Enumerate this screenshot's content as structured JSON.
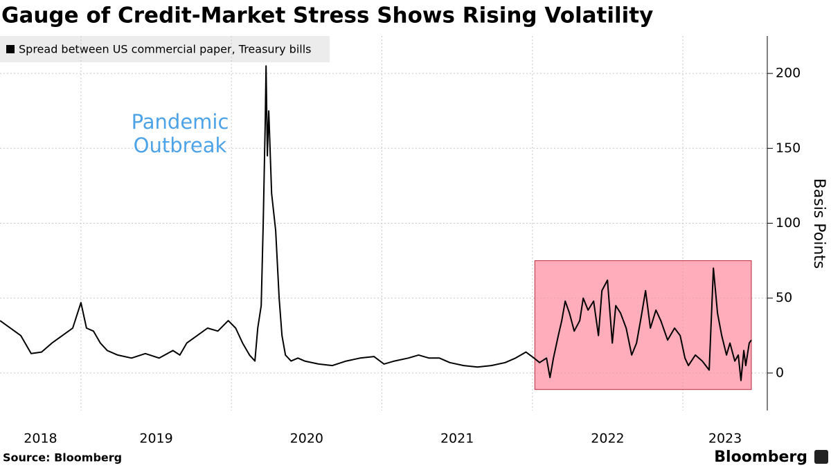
{
  "chart_data": {
    "type": "line",
    "title": "Gauge of Credit-Market Stress Shows Rising Volatility",
    "y_label": "Basis Points",
    "source": "Source: Bloomberg",
    "brand": "Bloomberg",
    "annotation": [
      "Pandemic",
      "Outbreak"
    ],
    "annotation_color": "#4da3e8",
    "x": [
      2018.462,
      2018.6,
      2018.669,
      2018.738,
      2018.807,
      2018.876,
      2018.945,
      2019.0,
      2019.037,
      2019.083,
      2019.129,
      2019.175,
      2019.244,
      2019.336,
      2019.428,
      2019.52,
      2019.611,
      2019.657,
      2019.703,
      2019.772,
      2019.841,
      2019.91,
      2019.979,
      2020.028,
      2020.074,
      2020.12,
      2020.156,
      2020.175,
      2020.198,
      2020.211,
      2020.225,
      2020.23,
      2020.239,
      2020.248,
      2020.267,
      2020.294,
      2020.317,
      2020.336,
      2020.359,
      2020.396,
      2020.442,
      2020.487,
      2020.579,
      2020.671,
      2020.763,
      2020.855,
      2020.947,
      2021.014,
      2021.083,
      2021.175,
      2021.244,
      2021.313,
      2021.382,
      2021.451,
      2021.543,
      2021.635,
      2021.727,
      2021.819,
      2021.888,
      2021.957,
      2022.011,
      2022.048,
      2022.094,
      2022.117,
      2022.14,
      2022.172,
      2022.195,
      2022.218,
      2022.246,
      2022.278,
      2022.315,
      2022.338,
      2022.37,
      2022.407,
      2022.439,
      2022.462,
      2022.499,
      2022.531,
      2022.554,
      2022.586,
      2022.623,
      2022.66,
      2022.692,
      2022.724,
      2022.752,
      2022.784,
      2022.821,
      2022.853,
      2022.899,
      2022.945,
      2022.982,
      2023.014,
      2023.037,
      2023.083,
      2023.129,
      2023.175,
      2023.203,
      2023.23,
      2023.258,
      2023.29,
      2023.313,
      2023.345,
      2023.368,
      2023.386,
      2023.405,
      2023.418,
      2023.441,
      2023.455
    ],
    "series": [
      {
        "name": "Spread between US commercial paper, Treasury bills",
        "color": "#000000",
        "values": [
          35,
          25,
          13,
          14,
          20,
          25,
          30,
          47,
          30,
          28,
          20,
          15,
          12,
          10,
          13,
          10,
          15,
          12,
          20,
          25,
          30,
          28,
          35,
          30,
          20,
          12,
          8,
          30,
          45,
          100,
          170,
          205,
          145,
          175,
          120,
          95,
          50,
          25,
          12,
          8,
          10,
          8,
          6,
          5,
          8,
          10,
          11,
          6,
          8,
          10,
          12,
          10,
          10,
          7,
          5,
          4,
          5,
          7,
          10,
          14,
          10,
          7,
          10,
          -3,
          10,
          25,
          35,
          48,
          40,
          28,
          35,
          50,
          42,
          48,
          25,
          55,
          62,
          20,
          45,
          40,
          30,
          12,
          20,
          38,
          55,
          30,
          42,
          35,
          22,
          30,
          25,
          10,
          5,
          12,
          8,
          2,
          70,
          40,
          25,
          12,
          20,
          8,
          12,
          -5,
          15,
          5,
          20,
          22
        ]
      }
    ],
    "highlight": {
      "x": [
        2022.016,
        2023.455
      ],
      "y": [
        -11,
        75
      ],
      "color": "#ff8a9c"
    },
    "xlim": [
      2018.462,
      2023.561
    ],
    "xticks": [
      2018,
      2019,
      2020,
      2021,
      2022,
      2023
    ],
    "ylim": [
      -25,
      225
    ],
    "yticks": [
      0,
      50,
      100,
      150,
      200
    ],
    "grid": true,
    "legend": "top-left"
  }
}
